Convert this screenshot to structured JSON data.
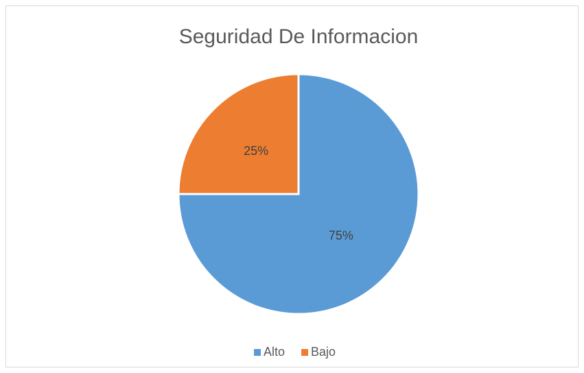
{
  "chart_data": {
    "type": "pie",
    "title": "Seguridad De Informacion",
    "categories": [
      "Alto",
      "Bajo"
    ],
    "values": [
      75,
      25
    ],
    "value_labels": [
      "75%",
      "25%"
    ],
    "colors": [
      "#5b9bd5",
      "#ed7d31"
    ],
    "legend": "bottom"
  }
}
